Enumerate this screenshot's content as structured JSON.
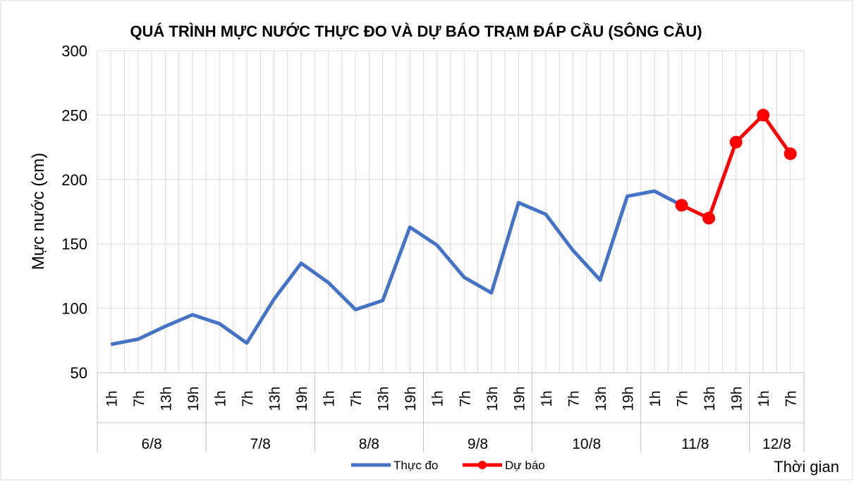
{
  "chart_data": {
    "type": "line",
    "title": "QUÁ TRÌNH MỰC NƯỚC THỰC ĐO VÀ DỰ BÁO TRẠM ĐÁP CẦU (SÔNG CẦU)",
    "y_label": "Mực nước (cm)",
    "x_label": "Thời gian",
    "categories": [
      "1h",
      "7h",
      "13h",
      "19h",
      "1h",
      "7h",
      "13h",
      "19h",
      "1h",
      "7h",
      "13h",
      "19h",
      "1h",
      "7h",
      "13h",
      "19h",
      "1h",
      "7h",
      "13h",
      "19h",
      "1h",
      "7h",
      "13h",
      "19h",
      "1h",
      "7h"
    ],
    "groups": [
      {
        "label": "6/8",
        "size": 4
      },
      {
        "label": "7/8",
        "size": 4
      },
      {
        "label": "8/8",
        "size": 4
      },
      {
        "label": "9/8",
        "size": 4
      },
      {
        "label": "10/8",
        "size": 4
      },
      {
        "label": "11/8",
        "size": 4
      },
      {
        "label": "12/8",
        "size": 2
      }
    ],
    "series": [
      {
        "name": "Thực đo",
        "color": "#4472c4",
        "markers": false,
        "values": [
          72,
          76,
          86,
          95,
          88,
          73,
          107,
          135,
          120,
          99,
          106,
          163,
          149,
          124,
          112,
          182,
          173,
          145,
          122,
          187,
          191,
          180,
          null,
          null,
          null,
          null
        ]
      },
      {
        "name": "Dự báo",
        "color": "#ff0000",
        "markers": true,
        "values": [
          null,
          null,
          null,
          null,
          null,
          null,
          null,
          null,
          null,
          null,
          null,
          null,
          null,
          null,
          null,
          null,
          null,
          null,
          null,
          null,
          null,
          180,
          170,
          229,
          250,
          220
        ]
      }
    ],
    "ylim": [
      50,
      300
    ],
    "yticks": [
      50,
      100,
      150,
      200,
      250,
      300
    ],
    "grid": true,
    "legend": "bottom"
  }
}
